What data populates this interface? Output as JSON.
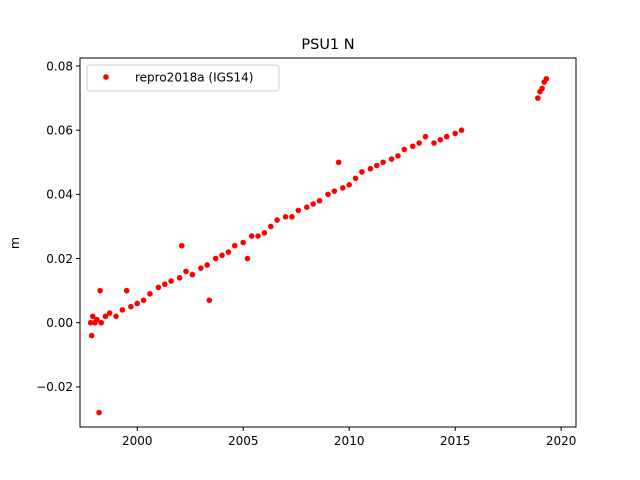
{
  "chart_data": {
    "type": "scatter",
    "title": "PSU1 N",
    "xlabel": "",
    "ylabel": "m",
    "xlim": [
      1997.3,
      2020.7
    ],
    "ylim": [
      -0.0325,
      0.0825
    ],
    "xticks": [
      2000,
      2005,
      2010,
      2015,
      2020
    ],
    "xtick_labels": [
      "2000",
      "2005",
      "2010",
      "2015",
      "2020"
    ],
    "yticks": [
      -0.02,
      0.0,
      0.02,
      0.04,
      0.06,
      0.08
    ],
    "ytick_labels": [
      "−0.02",
      "0.00",
      "0.02",
      "0.04",
      "0.06",
      "0.08"
    ],
    "grid": false,
    "legend": {
      "placement": "top-left"
    },
    "series": [
      {
        "name": "repro2018a (IGS14)",
        "color": "#ff0000",
        "marker": "circle",
        "points": [
          [
            1997.8,
            0.0
          ],
          [
            1997.85,
            -0.004
          ],
          [
            1997.9,
            0.002
          ],
          [
            1998.0,
            0.0
          ],
          [
            1998.1,
            0.001
          ],
          [
            1998.2,
            -0.028
          ],
          [
            1998.25,
            0.01
          ],
          [
            1998.3,
            0.0
          ],
          [
            1998.5,
            0.002
          ],
          [
            1998.7,
            0.003
          ],
          [
            1999.0,
            0.002
          ],
          [
            1999.3,
            0.004
          ],
          [
            1999.5,
            0.01
          ],
          [
            1999.7,
            0.005
          ],
          [
            2000.0,
            0.006
          ],
          [
            2000.3,
            0.007
          ],
          [
            2000.6,
            0.009
          ],
          [
            2001.0,
            0.011
          ],
          [
            2001.3,
            0.012
          ],
          [
            2001.6,
            0.013
          ],
          [
            2002.0,
            0.014
          ],
          [
            2002.1,
            0.024
          ],
          [
            2002.3,
            0.016
          ],
          [
            2002.6,
            0.015
          ],
          [
            2003.0,
            0.017
          ],
          [
            2003.3,
            0.018
          ],
          [
            2003.4,
            0.007
          ],
          [
            2003.7,
            0.02
          ],
          [
            2004.0,
            0.021
          ],
          [
            2004.3,
            0.022
          ],
          [
            2004.6,
            0.024
          ],
          [
            2005.0,
            0.025
          ],
          [
            2005.2,
            0.02
          ],
          [
            2005.4,
            0.027
          ],
          [
            2005.7,
            0.027
          ],
          [
            2006.0,
            0.028
          ],
          [
            2006.3,
            0.03
          ],
          [
            2006.6,
            0.032
          ],
          [
            2007.0,
            0.033
          ],
          [
            2007.3,
            0.033
          ],
          [
            2007.6,
            0.035
          ],
          [
            2008.0,
            0.036
          ],
          [
            2008.3,
            0.037
          ],
          [
            2008.6,
            0.038
          ],
          [
            2009.0,
            0.04
          ],
          [
            2009.3,
            0.041
          ],
          [
            2009.5,
            0.05
          ],
          [
            2009.7,
            0.042
          ],
          [
            2010.0,
            0.043
          ],
          [
            2010.3,
            0.045
          ],
          [
            2010.6,
            0.047
          ],
          [
            2011.0,
            0.048
          ],
          [
            2011.3,
            0.049
          ],
          [
            2011.6,
            0.05
          ],
          [
            2012.0,
            0.051
          ],
          [
            2012.3,
            0.052
          ],
          [
            2012.6,
            0.054
          ],
          [
            2013.0,
            0.055
          ],
          [
            2013.3,
            0.056
          ],
          [
            2013.6,
            0.058
          ],
          [
            2014.0,
            0.056
          ],
          [
            2014.3,
            0.057
          ],
          [
            2014.6,
            0.058
          ],
          [
            2015.0,
            0.059
          ],
          [
            2015.3,
            0.06
          ],
          [
            2018.9,
            0.07
          ],
          [
            2019.0,
            0.072
          ],
          [
            2019.1,
            0.073
          ],
          [
            2019.2,
            0.075
          ],
          [
            2019.3,
            0.076
          ]
        ]
      }
    ]
  }
}
